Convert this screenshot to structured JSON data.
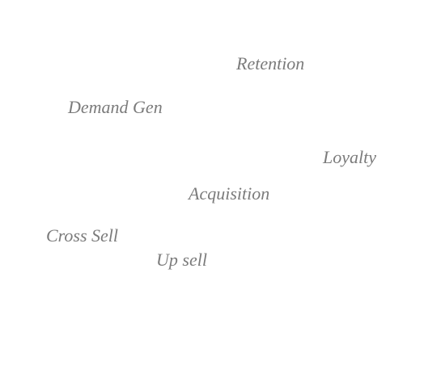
{
  "words": {
    "retention": "Retention",
    "demand_gen": "Demand Gen",
    "loyalty": "Loyalty",
    "acquisition": "Acquisition",
    "cross_sell": "Cross Sell",
    "up_sell": "Up sell"
  },
  "colors": {
    "text": "#7b7b7b",
    "background": "#ffffff"
  }
}
